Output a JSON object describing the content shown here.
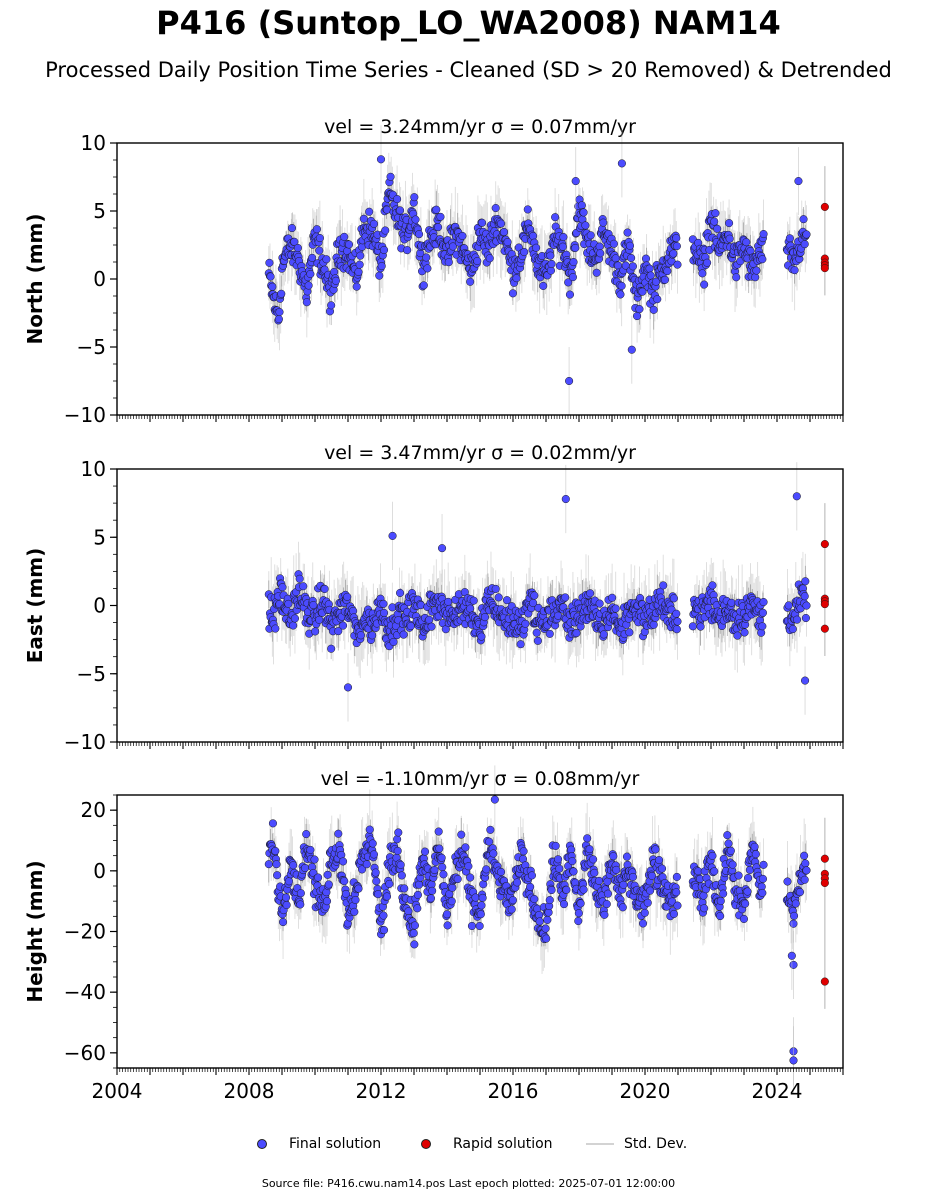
{
  "header": {
    "title": "P416 (Suntop_LO_WA2008) NAM14",
    "subtitle": "Processed Daily Position Time Series - Cleaned (SD > 20 Removed) & Detrended"
  },
  "legend": {
    "final_label": "Final solution",
    "rapid_label": "Rapid solution",
    "std_label": "Std. Dev."
  },
  "footer": {
    "source": "Source file: P416.cwu.nam14.pos  Last epoch plotted: 2025-07-01 12:00:00"
  },
  "colors": {
    "final": "#4b4bff",
    "rapid": "#e00000",
    "std": "#c0c0c0",
    "spread": "#555555"
  },
  "chart_data": [
    {
      "type": "scatter",
      "title": "vel = 3.24mm/yr   σ = 0.07mm/yr",
      "ylabel": "North (mm)",
      "xlim": [
        2004.0,
        2026.0
      ],
      "ylim": [
        -10,
        10
      ],
      "yticks": [
        10,
        5,
        0,
        -5,
        -10
      ],
      "xtick_labels_visible": false,
      "series": [
        {
          "name": "Final solution",
          "x": [
            2008.6,
            2008.75,
            2008.9,
            2009.0,
            2009.25,
            2009.5,
            2009.75,
            2010.0,
            2010.25,
            2010.5,
            2010.75,
            2011.0,
            2011.25,
            2011.5,
            2011.75,
            2012.0,
            2012.25,
            2012.5,
            2012.75,
            2013.0,
            2013.25,
            2013.5,
            2013.75,
            2014.0,
            2014.25,
            2014.5,
            2014.75,
            2015.0,
            2015.25,
            2015.5,
            2015.75,
            2016.0,
            2016.25,
            2016.5,
            2016.75,
            2017.0,
            2017.25,
            2017.5,
            2017.75,
            2018.0,
            2018.25,
            2018.5,
            2018.75,
            2019.0,
            2019.25,
            2019.5,
            2019.75,
            2020.0,
            2020.25,
            2020.5,
            2020.75,
            2021.5,
            2021.75,
            2022.0,
            2022.25,
            2022.5,
            2022.75,
            2023.0,
            2023.25,
            2023.5,
            2024.25,
            2024.5,
            2024.75
          ],
          "y": [
            0.3,
            -1.5,
            -3.0,
            1.0,
            2.5,
            1.5,
            -1.0,
            3.0,
            1.0,
            -1.5,
            2.5,
            2.0,
            0.0,
            4.0,
            3.5,
            1.0,
            6.5,
            4.5,
            3.0,
            5.5,
            1.0,
            3.0,
            4.0,
            1.5,
            3.5,
            2.0,
            0.5,
            3.5,
            2.0,
            4.5,
            3.0,
            0.5,
            2.0,
            4.0,
            1.0,
            0.0,
            3.0,
            2.5,
            0.0,
            5.5,
            2.5,
            1.5,
            3.5,
            2.0,
            0.0,
            2.5,
            -2.0,
            1.0,
            -1.0,
            0.5,
            2.0,
            2.5,
            0.5,
            4.5,
            2.0,
            3.5,
            1.0,
            2.5,
            0.5,
            2.0,
            2.5,
            1.0,
            3.0
          ]
        },
        {
          "name": "Rapid solution",
          "x": [
            2025.45,
            2025.45,
            2025.45,
            2025.45,
            2025.45
          ],
          "y": [
            5.3,
            1.5,
            1.2,
            1.0,
            0.8
          ]
        }
      ],
      "outliers_x": [
        2017.7,
        2019.3,
        2017.9,
        2012.0,
        2019.6,
        2024.65
      ],
      "outliers_y": [
        -7.5,
        8.5,
        7.2,
        8.8,
        -5.2,
        7.2
      ]
    },
    {
      "type": "scatter",
      "title": "vel = 3.47mm/yr   σ = 0.02mm/yr",
      "ylabel": "East (mm)",
      "xlim": [
        2004.0,
        2026.0
      ],
      "ylim": [
        -10,
        10
      ],
      "yticks": [
        10,
        5,
        0,
        -5,
        -10
      ],
      "xtick_labels_visible": false,
      "series": [
        {
          "name": "Final solution",
          "x": [
            2008.6,
            2008.75,
            2008.9,
            2009.0,
            2009.25,
            2009.5,
            2009.75,
            2010.0,
            2010.25,
            2010.5,
            2010.75,
            2011.0,
            2011.25,
            2011.5,
            2011.75,
            2012.0,
            2012.25,
            2012.5,
            2012.75,
            2013.0,
            2013.25,
            2013.5,
            2013.75,
            2014.0,
            2014.25,
            2014.5,
            2014.75,
            2015.0,
            2015.25,
            2015.5,
            2015.75,
            2016.0,
            2016.25,
            2016.5,
            2016.75,
            2017.0,
            2017.25,
            2017.5,
            2017.75,
            2018.0,
            2018.25,
            2018.5,
            2018.75,
            2019.0,
            2019.25,
            2019.5,
            2019.75,
            2020.0,
            2020.25,
            2020.5,
            2020.75,
            2021.5,
            2021.75,
            2022.0,
            2022.25,
            2022.5,
            2022.75,
            2023.0,
            2023.25,
            2023.5,
            2024.25,
            2024.5,
            2024.75
          ],
          "y": [
            -0.5,
            -1.0,
            1.0,
            0.5,
            -1.0,
            1.0,
            -0.5,
            -1.0,
            0.5,
            -1.5,
            -0.5,
            0.0,
            -2.0,
            -1.0,
            -1.5,
            0.0,
            -2.0,
            -0.5,
            -1.0,
            0.0,
            -1.5,
            -0.5,
            0.5,
            -0.5,
            -1.0,
            0.0,
            -0.5,
            -1.5,
            0.5,
            0.0,
            -1.0,
            -1.0,
            -2.0,
            0.5,
            -1.5,
            -1.0,
            -0.5,
            0.0,
            -1.5,
            -0.5,
            0.0,
            -1.0,
            -1.5,
            0.0,
            -2.0,
            -0.5,
            0.0,
            -1.0,
            -0.5,
            0.5,
            -1.0,
            0.0,
            -0.5,
            0.5,
            -1.0,
            0.0,
            -1.0,
            -0.5,
            0.0,
            -1.0,
            0.0,
            -1.0,
            0.5
          ]
        },
        {
          "name": "Rapid solution",
          "x": [
            2025.45,
            2025.45,
            2025.45,
            2025.45,
            2025.45
          ],
          "y": [
            4.5,
            0.5,
            0.3,
            0.1,
            -1.7
          ]
        }
      ],
      "outliers_x": [
        2017.6,
        2012.35,
        2013.85,
        2024.6,
        2024.85,
        2011.0
      ],
      "outliers_y": [
        7.8,
        5.1,
        4.2,
        8.0,
        -5.5,
        -6.0
      ]
    },
    {
      "type": "scatter",
      "title": "vel = -1.10mm/yr   σ = 0.08mm/yr",
      "ylabel": "Height (mm)",
      "xlim": [
        2004.0,
        2026.0
      ],
      "ylim": [
        -65,
        25
      ],
      "yticks": [
        20,
        0,
        -20,
        -40,
        -60
      ],
      "xtick_labels_visible": true,
      "xticks": [
        2004,
        2008,
        2012,
        2016,
        2020,
        2024
      ],
      "series": [
        {
          "name": "Final solution",
          "x": [
            2008.6,
            2008.75,
            2008.9,
            2009.0,
            2009.25,
            2009.5,
            2009.75,
            2010.0,
            2010.25,
            2010.5,
            2010.75,
            2011.0,
            2011.25,
            2011.5,
            2011.75,
            2012.0,
            2012.25,
            2012.5,
            2012.75,
            2013.0,
            2013.25,
            2013.5,
            2013.75,
            2014.0,
            2014.25,
            2014.5,
            2014.75,
            2015.0,
            2015.25,
            2015.5,
            2015.75,
            2016.0,
            2016.25,
            2016.5,
            2016.75,
            2017.0,
            2017.25,
            2017.5,
            2017.75,
            2018.0,
            2018.25,
            2018.5,
            2018.75,
            2019.0,
            2019.25,
            2019.5,
            2019.75,
            2020.0,
            2020.25,
            2020.5,
            2020.75,
            2021.5,
            2021.75,
            2022.0,
            2022.25,
            2022.5,
            2022.75,
            2023.0,
            2023.25,
            2023.5,
            2024.25,
            2024.5,
            2024.75
          ],
          "y": [
            5.0,
            10.0,
            -5.0,
            -15.0,
            5.0,
            -10.0,
            10.0,
            -5.0,
            -12.0,
            5.0,
            8.0,
            -15.0,
            -5.0,
            5.0,
            10.0,
            -20.0,
            0.0,
            8.0,
            -12.0,
            -18.0,
            5.0,
            -8.0,
            10.0,
            -15.0,
            0.0,
            5.0,
            -10.0,
            -15.0,
            8.0,
            0.0,
            -8.0,
            -10.0,
            5.0,
            -5.0,
            -15.0,
            -20.0,
            5.0,
            -8.0,
            5.0,
            -15.0,
            8.0,
            -5.0,
            -12.0,
            5.0,
            -10.0,
            2.0,
            -8.0,
            -12.0,
            5.0,
            -3.0,
            -10.0,
            0.0,
            -10.0,
            5.0,
            -15.0,
            10.0,
            -8.0,
            -12.0,
            8.0,
            -5.0,
            -5.0,
            -15.0,
            0.0
          ]
        },
        {
          "name": "Rapid solution",
          "x": [
            2025.45,
            2025.45,
            2025.45,
            2025.45,
            2025.45
          ],
          "y": [
            4.0,
            -1.0,
            -2.5,
            -4.0,
            -36.5
          ]
        }
      ],
      "outliers_x": [
        2015.45,
        2024.5,
        2024.5,
        2024.5,
        2024.45
      ],
      "outliers_y": [
        23.5,
        -59.5,
        -62.5,
        -31.0,
        -28.0
      ]
    }
  ]
}
